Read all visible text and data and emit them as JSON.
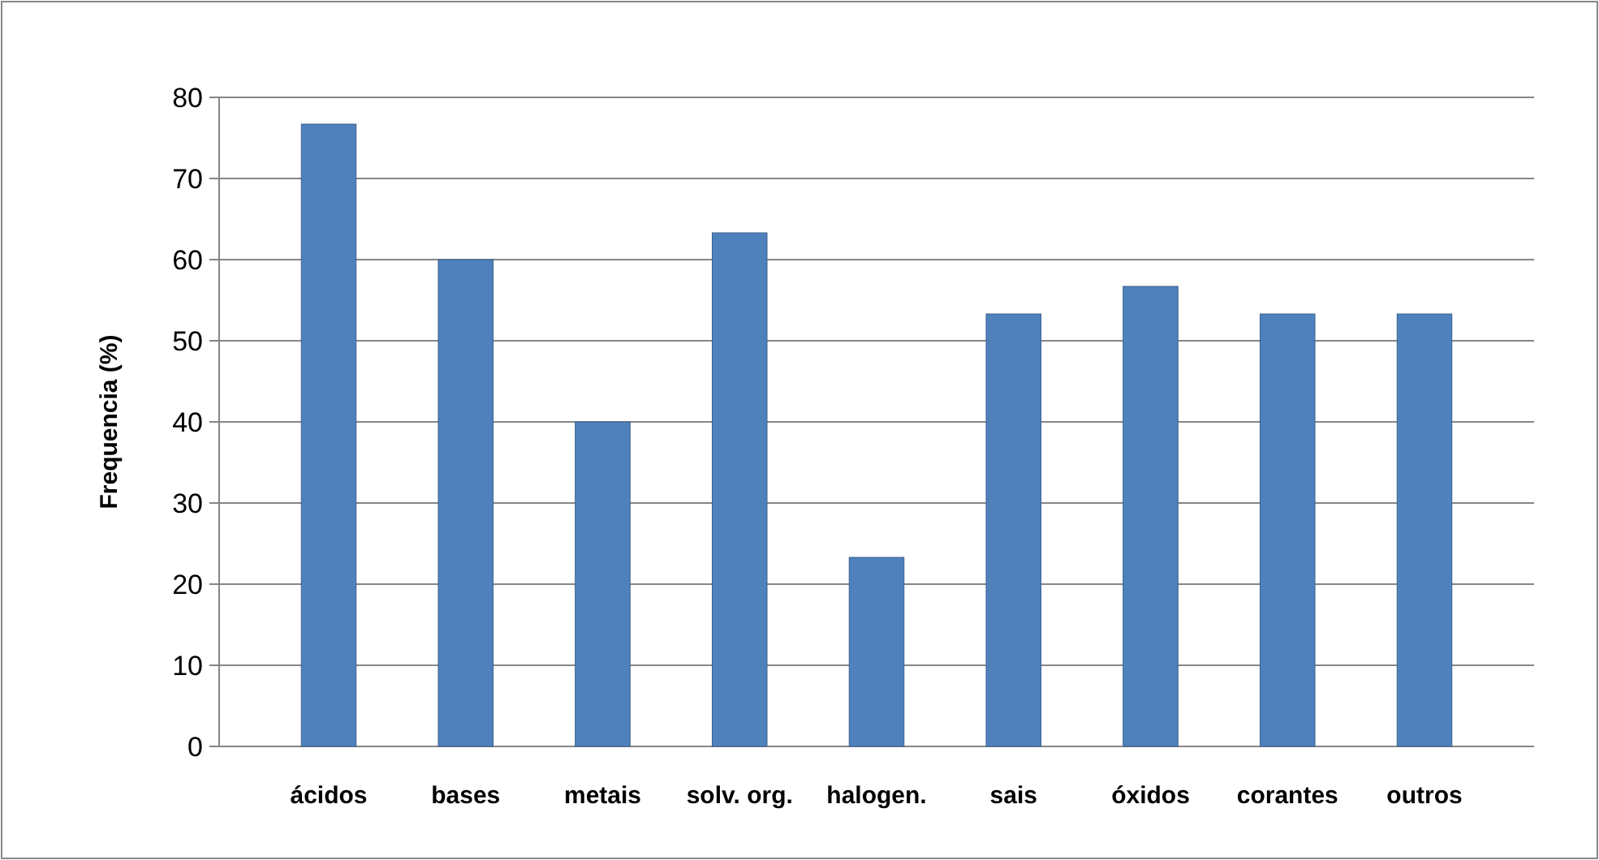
{
  "chart_data": {
    "type": "bar",
    "ylabel": "Frequencia (%)",
    "categories": [
      "ácidos",
      "bases",
      "metais",
      "solv. org.",
      "halogen.",
      "sais",
      "óxidos",
      "corantes",
      "outros"
    ],
    "values": [
      76.7,
      60,
      40,
      63.3,
      23.3,
      53.3,
      56.7,
      53.3,
      53.3
    ],
    "color": "#4f81bd",
    "ylim": [
      0,
      80
    ],
    "yticks": [
      0,
      10,
      20,
      30,
      40,
      50,
      60,
      70,
      80
    ],
    "grid": "y"
  }
}
